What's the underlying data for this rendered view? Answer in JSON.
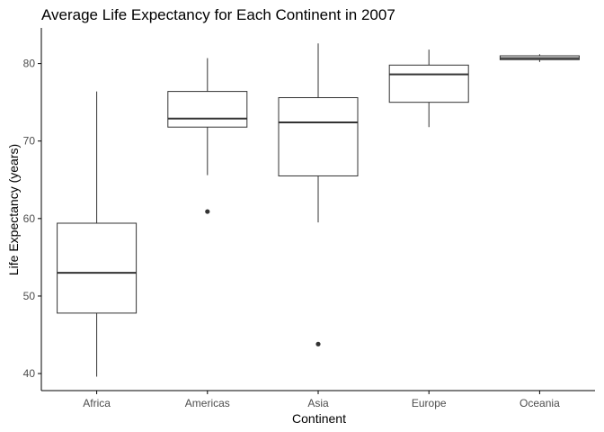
{
  "chart_data": {
    "type": "boxplot",
    "title": "Average Life Expectancy for Each Continent in 2007",
    "xlabel": "Continent",
    "ylabel": "Life Expectancy (years)",
    "categories": [
      "Africa",
      "Americas",
      "Asia",
      "Europe",
      "Oceania"
    ],
    "yticks": [
      40,
      50,
      60,
      70,
      80
    ],
    "ylim": [
      37.8,
      84.6
    ],
    "grid": false,
    "legend": "none",
    "boxes": [
      {
        "category": "Africa",
        "whisker_low": 39.6,
        "q1": 47.8,
        "median": 53.0,
        "q3": 59.4,
        "whisker_high": 76.4,
        "outliers": []
      },
      {
        "category": "Americas",
        "whisker_low": 65.6,
        "q1": 71.8,
        "median": 72.9,
        "q3": 76.4,
        "whisker_high": 80.7,
        "outliers": [
          60.9
        ]
      },
      {
        "category": "Asia",
        "whisker_low": 59.5,
        "q1": 65.5,
        "median": 72.4,
        "q3": 75.6,
        "whisker_high": 82.6,
        "outliers": [
          43.8
        ]
      },
      {
        "category": "Europe",
        "whisker_low": 71.8,
        "q1": 75.0,
        "median": 78.6,
        "q3": 79.8,
        "whisker_high": 81.8,
        "outliers": []
      },
      {
        "category": "Oceania",
        "whisker_low": 80.2,
        "q1": 80.5,
        "median": 80.7,
        "q3": 81.0,
        "whisker_high": 81.2,
        "outliers": []
      }
    ],
    "colors": {
      "box_stroke": "#333333",
      "box_fill": "#ffffff",
      "axis": "#000000",
      "tick_label": "#4d4d4d",
      "title": "#000000"
    }
  }
}
